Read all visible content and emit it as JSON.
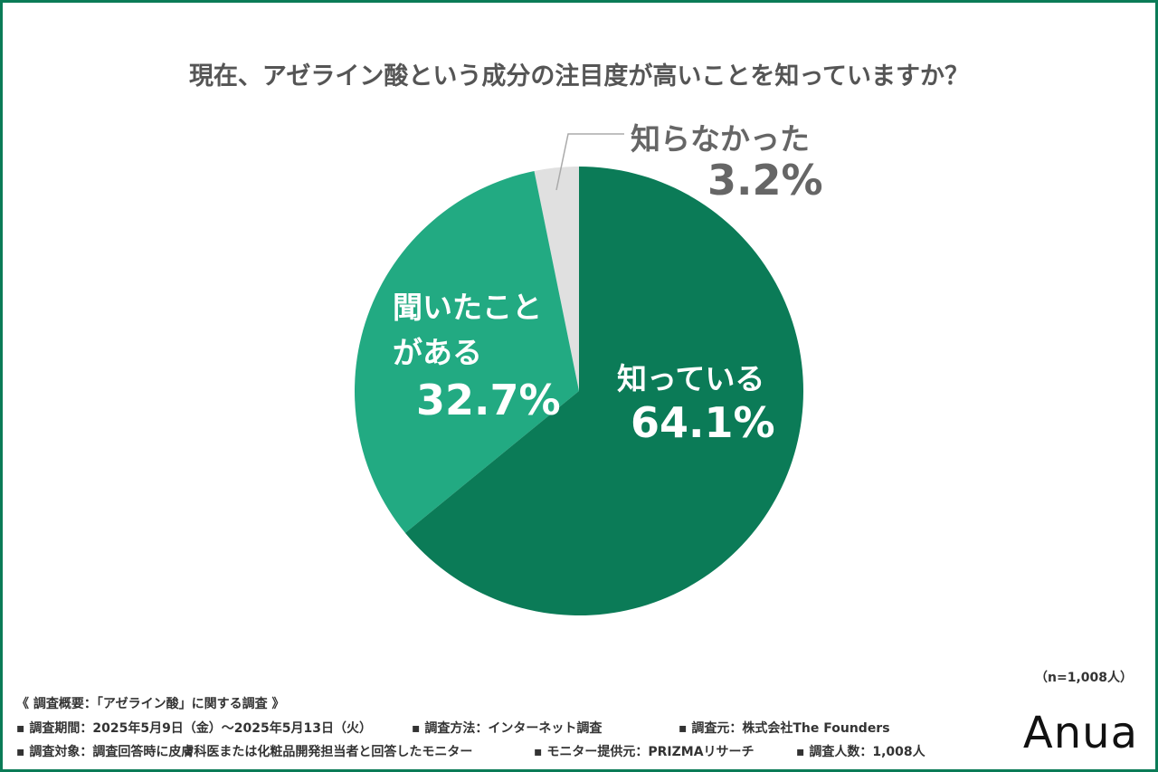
{
  "chart_data": {
    "type": "pie",
    "title": "現在、アゼライン酸という成分の注目度が高いことを知っていますか？",
    "categories": [
      "知っている",
      "聞いたことがある",
      "知らなかった"
    ],
    "values": [
      64.1,
      32.7,
      3.2
    ],
    "value_labels": [
      "64.1%",
      "32.7%",
      "3.2%"
    ],
    "colors": [
      "#0b7b57",
      "#22aa82",
      "#e0e0e0"
    ],
    "sample_size": "（n=1,008人）",
    "notes": {
      "heading": "《 調査概要：「アゼライン酸」に関する調査 》",
      "rows": [
        [
          "▪ 調査期間：2025年5月9日（金）～2025年5月13日（火）",
          "▪ 調査方法：インターネット調査",
          "▪ 調査元：株式会社The Founders"
        ],
        [
          "▪ 調査対象：調査回答時に皮膚科医または化粧品開発担当者と回答したモニター",
          "▪ モニター提供元：PRIZMAリサーチ",
          "▪ 調査人数：1,008人"
        ]
      ]
    },
    "brand": "Anua"
  }
}
